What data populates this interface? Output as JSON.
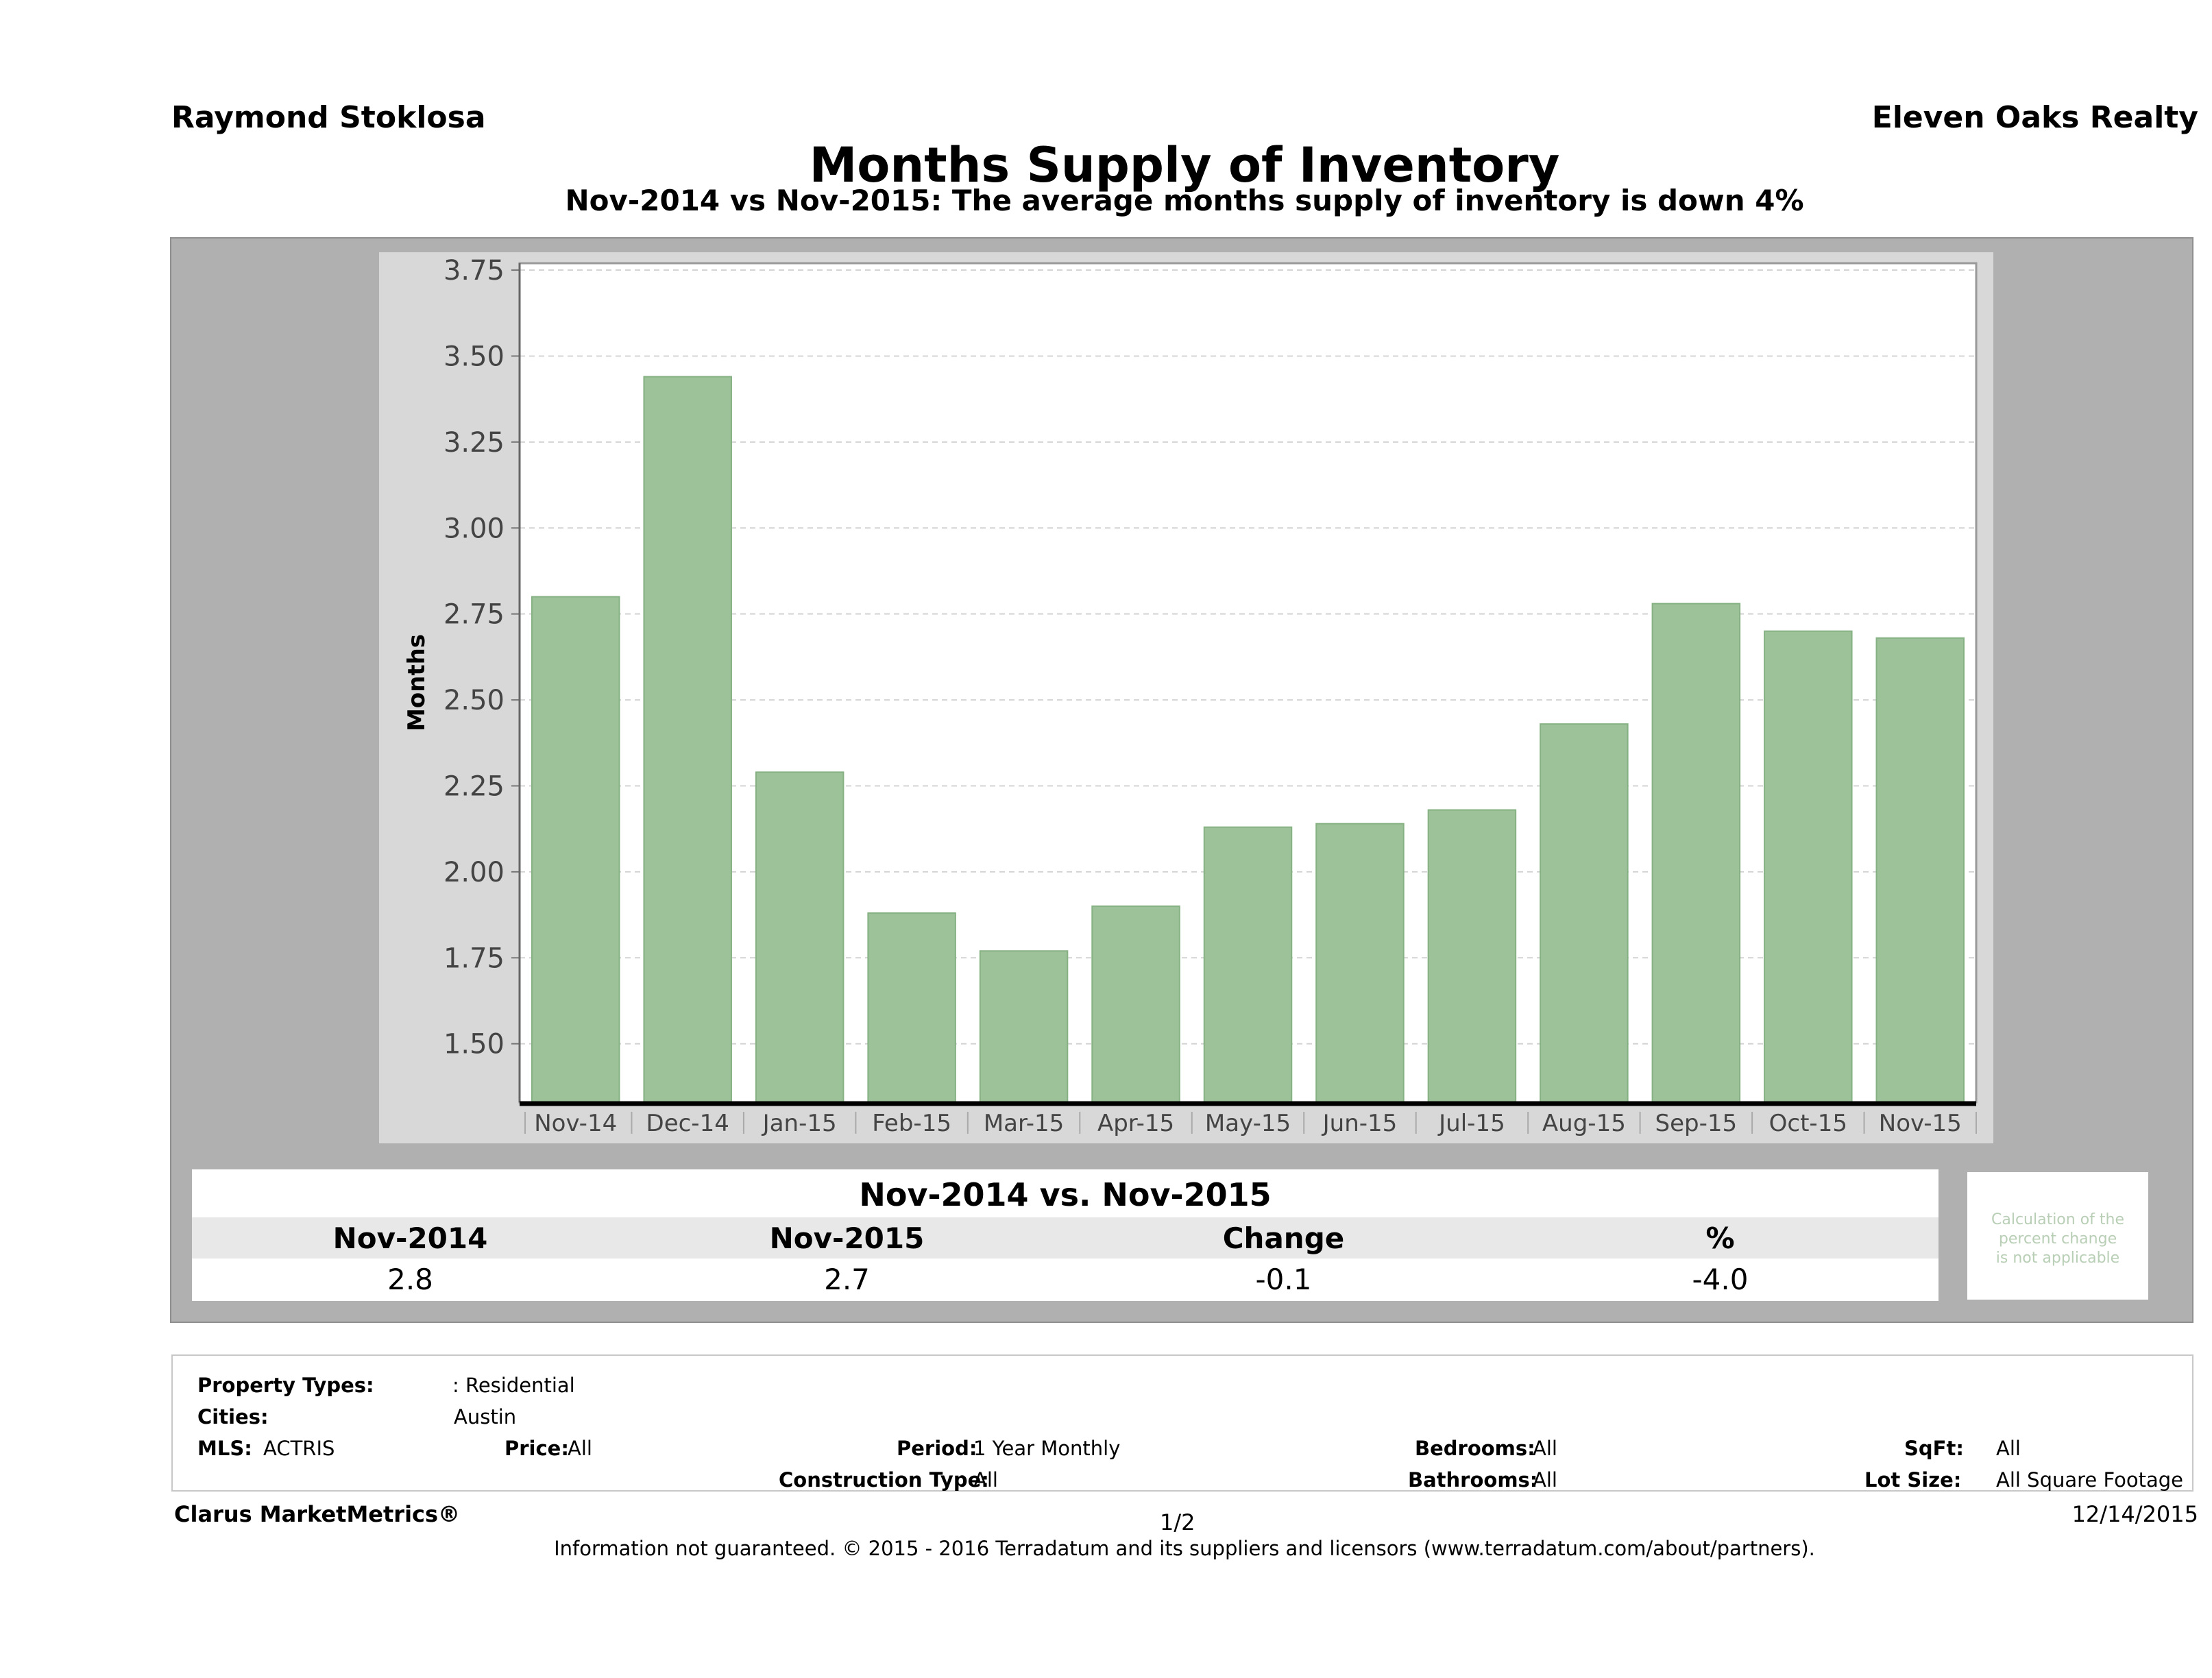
{
  "header": {
    "agent": "Raymond Stoklosa",
    "company": "Eleven Oaks Realty",
    "title": "Months Supply of Inventory",
    "subtitle": "Nov-2014 vs Nov-2015: The average months supply of inventory is down 4%"
  },
  "chart_data": {
    "type": "bar",
    "categories": [
      "Nov-14",
      "Dec-14",
      "Jan-15",
      "Feb-15",
      "Mar-15",
      "Apr-15",
      "May-15",
      "Jun-15",
      "Jul-15",
      "Aug-15",
      "Sep-15",
      "Oct-15",
      "Nov-15"
    ],
    "values": [
      2.8,
      3.44,
      2.29,
      1.88,
      1.77,
      1.9,
      2.13,
      2.14,
      2.18,
      2.43,
      2.78,
      2.7,
      2.68
    ],
    "ylabel": "Months",
    "xlabel": "",
    "ylim": [
      1.33,
      3.77
    ],
    "yticks": [
      "1.50",
      "1.75",
      "2.00",
      "2.25",
      "2.50",
      "2.75",
      "3.00",
      "3.25",
      "3.50",
      "3.75"
    ],
    "grid": true,
    "bar_color": "#9dc29a"
  },
  "comparison": {
    "heading": "Nov-2014 vs. Nov-2015",
    "labels": [
      "Nov-2014",
      "Nov-2015",
      "Change",
      "%"
    ],
    "values": [
      "2.8",
      "2.7",
      "-0.1",
      "-4.0"
    ],
    "note": [
      "Calculation of the",
      "percent change",
      "is not applicable"
    ]
  },
  "filters": {
    "property_types_label": "Property Types:",
    "property_types_value": ": Residential",
    "cities_label": "Cities:",
    "cities_value": "Austin",
    "mls_label": "MLS:",
    "mls_value": "ACTRIS",
    "price_label": "Price:",
    "price_value": "All",
    "period_label": "Period:",
    "period_value": "1 Year Monthly",
    "construction_label": "Construction Type:",
    "construction_value": "All",
    "bedrooms_label": "Bedrooms:",
    "bedrooms_value": "All",
    "bathrooms_label": "Bathrooms:",
    "bathrooms_value": "All",
    "sqft_label": "SqFt:",
    "sqft_value": "All",
    "lotsize_label": "Lot Size:",
    "lotsize_value": "All Square Footage"
  },
  "footer": {
    "brand": "Clarus MarketMetrics®",
    "page": "1/2",
    "date": "12/14/2015",
    "disclaimer": "Information not guaranteed. © 2015 - 2016 Terradatum and its suppliers and licensors (www.terradatum.com/about/partners)."
  }
}
